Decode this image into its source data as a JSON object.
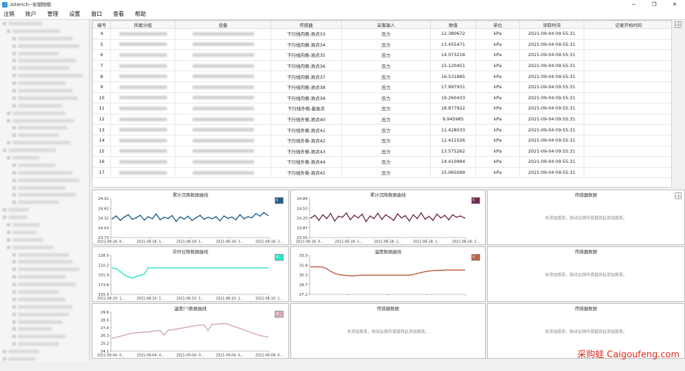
{
  "window": {
    "title": "Aiterich--安钢物联",
    "minimize": "─",
    "maximize": "❐",
    "close": "✕"
  },
  "menu": [
    "注销",
    "账户",
    "管理",
    "设置",
    "窗口",
    "查看",
    "帮助"
  ],
  "table": {
    "headers": [
      "编号",
      "所属分组",
      "设备",
      "传感器",
      "采集输入",
      "数值",
      "单位",
      "读取时间",
      "记录开始时间"
    ],
    "rows": [
      {
        "id": "4",
        "sensor": "下行线内侧-测点33",
        "input": "压力",
        "value": "12.380672",
        "unit": "kPa",
        "time": "2021-09-04 09:55:31"
      },
      {
        "id": "5",
        "sensor": "下行线内侧-测点34",
        "input": "压力",
        "value": "13.455471",
        "unit": "kPa",
        "time": "2021-09-04 09:55:31"
      },
      {
        "id": "6",
        "sensor": "下行线内侧-测点35",
        "input": "压力",
        "value": "14.073218",
        "unit": "kPa",
        "time": "2021-09-04 09:55:31"
      },
      {
        "id": "7",
        "sensor": "下行线内侧-测点36",
        "input": "压力",
        "value": "15.120451",
        "unit": "kPa",
        "time": "2021-09-04 09:55:31"
      },
      {
        "id": "8",
        "sensor": "下行线内侧-测点37",
        "input": "压力",
        "value": "16.531885",
        "unit": "kPa",
        "time": "2021-09-04 09:55:31"
      },
      {
        "id": "9",
        "sensor": "下行线内侧-测点38",
        "input": "压力",
        "value": "17.997931",
        "unit": "kPa",
        "time": "2021-09-04 09:55:31"
      },
      {
        "id": "10",
        "sensor": "下行线内侧-测点39",
        "input": "压力",
        "value": "19.260433",
        "unit": "kPa",
        "time": "2021-09-04 09:55:31"
      },
      {
        "id": "11",
        "sensor": "下行线外侧-基准点",
        "input": "压力",
        "value": "18.877922",
        "unit": "kPa",
        "time": "2021-09-04 09:55:31"
      },
      {
        "id": "12",
        "sensor": "下行线外侧-测点40",
        "input": "压力",
        "value": "9.945985",
        "unit": "kPa",
        "time": "2021-09-04 09:55:31"
      },
      {
        "id": "13",
        "sensor": "下行线外侧-测点41",
        "input": "压力",
        "value": "11.428033",
        "unit": "kPa",
        "time": "2021-09-04 09:55:31"
      },
      {
        "id": "14",
        "sensor": "下行线外侧-测点42",
        "input": "压力",
        "value": "12.411026",
        "unit": "kPa",
        "time": "2021-09-04 09:55:31"
      },
      {
        "id": "15",
        "sensor": "下行线外侧-测点43",
        "input": "压力",
        "value": "13.575262",
        "unit": "kPa",
        "time": "2021-09-04 09:55:31"
      },
      {
        "id": "16",
        "sensor": "下行线外侧-测点44",
        "input": "压力",
        "value": "14.410984",
        "unit": "kPa",
        "time": "2021-09-04 09:55:31"
      },
      {
        "id": "17",
        "sensor": "下行线外侧-测点45",
        "input": "压力",
        "value": "15.065099",
        "unit": "kPa",
        "time": "2021-09-04 09:55:31"
      }
    ]
  },
  "empty_panels": {
    "title": "传感器数据",
    "hint": "未添加图表，拖动左侧传感器到此添加图表。"
  },
  "chart_data": [
    {
      "type": "line",
      "title": "累计沉降数据曲线",
      "color": "#1f5f8b",
      "legend": "5",
      "yticks": [
        "24.91",
        "24.62",
        "24.32",
        "24.03",
        "23.73"
      ],
      "ylim": [
        23.73,
        24.91
      ],
      "xticks": [
        "2021-08-18- 0...",
        "2021-08-18- 1...",
        "2021-08-18- 1...",
        "2021-08-18- 1...",
        "2021-08-18- 2..."
      ],
      "values": [
        24.3,
        24.38,
        24.25,
        24.35,
        24.42,
        24.28,
        24.33,
        24.4,
        24.26,
        24.36,
        24.3,
        24.44,
        24.27,
        24.34,
        24.31,
        24.39,
        24.22,
        24.35,
        24.29,
        24.37,
        24.25,
        24.33,
        24.4,
        24.28,
        24.34,
        24.3,
        24.36,
        24.24,
        24.38,
        24.31,
        24.35,
        24.27,
        24.42,
        24.3,
        24.36,
        24.33,
        24.45,
        24.38,
        24.48,
        24.4
      ]
    },
    {
      "type": "line",
      "title": "累计沉降数据曲线",
      "color": "#6e2b4f",
      "legend": "5",
      "yticks": [
        "24.84",
        "24.52",
        "24.20",
        "23.87",
        "23.55"
      ],
      "ylim": [
        23.55,
        24.84
      ],
      "xticks": [
        "2021-08-18- 0...",
        "2021-08-18- 1...",
        "2021-08-18- 1...",
        "2021-08-18- 1...",
        "2021-08-18- 2..."
      ],
      "values": [
        24.2,
        24.28,
        24.12,
        24.3,
        24.18,
        24.34,
        24.1,
        24.25,
        24.22,
        24.36,
        24.14,
        24.28,
        24.2,
        24.32,
        24.08,
        24.26,
        24.18,
        24.35,
        24.15,
        24.3,
        24.22,
        24.12,
        24.33,
        24.2,
        24.27,
        24.1,
        24.3,
        24.18,
        24.36,
        24.16,
        24.25,
        24.12,
        24.32,
        24.2,
        24.28,
        24.14,
        24.3,
        24.22,
        24.26,
        24.2
      ]
    },
    {
      "type": "line",
      "title": "实时位移数据曲线",
      "color": "#2ee6c8",
      "legend": "0",
      "yticks": [
        "228.5",
        "210.2",
        "191.9",
        "173.6",
        "155.3"
      ],
      "ylim": [
        155.3,
        228.5
      ],
      "xticks": [
        "2021-08-10- 1...",
        "2021-08-10- 1...",
        "2021-08-10- 1...",
        "2021-08-10- 1...",
        "2021-08-10- 1..."
      ],
      "values": [
        205,
        203,
        198,
        192,
        188,
        186,
        189,
        191,
        193,
        205,
        205,
        205,
        205,
        205,
        205,
        205,
        205,
        205,
        205,
        205,
        205,
        205,
        205,
        205,
        205,
        205,
        205,
        205,
        205,
        205,
        205,
        205,
        205,
        205,
        205,
        205,
        205,
        205,
        205,
        205
      ]
    },
    {
      "type": "line",
      "title": "温度数据曲线",
      "color": "#b8644a",
      "legend": "0",
      "yticks": [
        "33.3",
        "31.8",
        "30.3",
        "28.7",
        "27.2"
      ],
      "ylim": [
        27.2,
        33.3
      ],
      "xticks": [
        "",
        "",
        "",
        "",
        ""
      ],
      "values": [
        31.5,
        31.5,
        31.5,
        31.45,
        31.2,
        30.8,
        30.5,
        30.3,
        30.2,
        30.15,
        30.1,
        30.1,
        30.15,
        30.2,
        30.2,
        30.2,
        30.2,
        30.2,
        30.2,
        30.2,
        30.2,
        30.2,
        30.2,
        30.2,
        30.2,
        30.2,
        30.3,
        30.45,
        30.6,
        30.75,
        30.85,
        30.9,
        30.95,
        30.95,
        31.0,
        31.0,
        31.0,
        31.0,
        31.0,
        31.0
      ]
    },
    {
      "type": "line",
      "title": "温度(°)数据曲线",
      "color": "#d4a9bd",
      "legend": "0",
      "yticks": [
        "29.6",
        "28.5",
        "27.4",
        "26.3",
        "25.2",
        "24.1"
      ],
      "ylim": [
        24.1,
        29.6
      ],
      "xticks": [
        "2021-09-04- 0...",
        "2021-09-04- 0...",
        "2021-09-04- 0...",
        "2021-09-04- 0...",
        "2021-09-04- 0..."
      ],
      "values": [
        25.9,
        26.05,
        26.2,
        26.35,
        26.5,
        26.6,
        26.7,
        26.75,
        26.8,
        26.8,
        26.9,
        27.0,
        27.0,
        26.4,
        27.05,
        27.1,
        27.2,
        27.3,
        27.4,
        27.5,
        27.6,
        27.7,
        27.75,
        27.8,
        27.0,
        27.85,
        27.9,
        27.95,
        28.0,
        27.9,
        27.7,
        27.5,
        27.3,
        27.1,
        26.9,
        26.7,
        26.5,
        26.3,
        26.2,
        26.1
      ]
    }
  ],
  "watermark": "采购蛙 Caigoufeng.com"
}
